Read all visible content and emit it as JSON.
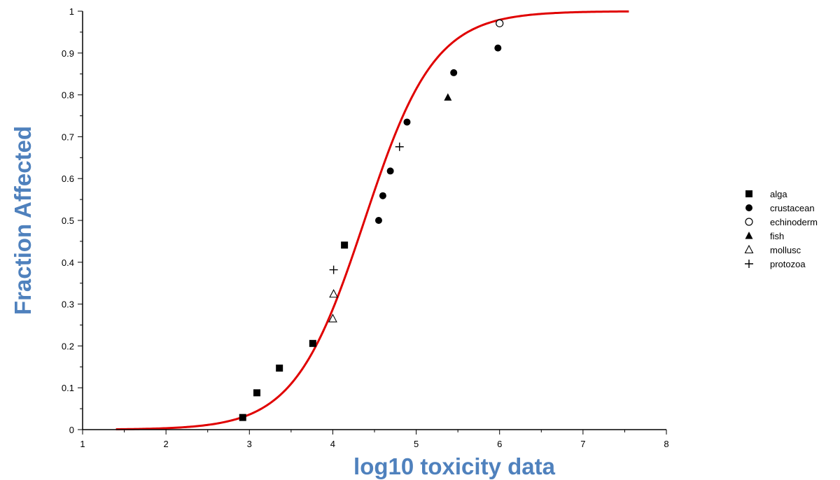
{
  "chart_data": {
    "type": "scatter",
    "xlabel": "log10 toxicity data",
    "ylabel": "Fraction Affected",
    "xlim": [
      1,
      8
    ],
    "ylim": [
      0,
      1
    ],
    "x_ticks": [
      "1",
      "2",
      "3",
      "4",
      "5",
      "6",
      "7",
      "8"
    ],
    "y_ticks": [
      "0",
      "0.1",
      "0.2",
      "0.3",
      "0.4",
      "0.5",
      "0.6",
      "0.7",
      "0.8",
      "0.9",
      "1"
    ],
    "grid": false,
    "legend_position": "right",
    "fit_curve": {
      "type": "line",
      "model": "logistic cumulative distribution",
      "location": 4.38,
      "scale": 0.42,
      "x_range": [
        1.4,
        7.55
      ],
      "color": "#e00000"
    },
    "series": [
      {
        "name": "alga",
        "marker": "filled-square",
        "x": [
          2.92,
          3.09,
          3.36,
          3.76,
          4.14
        ],
        "y": [
          0.029,
          0.088,
          0.147,
          0.206,
          0.441
        ]
      },
      {
        "name": "crustacean",
        "marker": "filled-circle",
        "x": [
          4.55,
          4.6,
          4.69,
          4.89,
          5.45,
          5.98
        ],
        "y": [
          0.5,
          0.559,
          0.618,
          0.735,
          0.853,
          0.912
        ]
      },
      {
        "name": "echinoderm",
        "marker": "open-circle",
        "x": [
          6.0
        ],
        "y": [
          0.971
        ]
      },
      {
        "name": "fish",
        "marker": "filled-triangle",
        "x": [
          5.38
        ],
        "y": [
          0.794
        ]
      },
      {
        "name": "mollusc",
        "marker": "open-triangle",
        "x": [
          4.0,
          4.01
        ],
        "y": [
          0.265,
          0.324
        ]
      },
      {
        "name": "protozoa",
        "marker": "plus",
        "x": [
          4.01,
          4.8
        ],
        "y": [
          0.382,
          0.676
        ]
      }
    ]
  }
}
